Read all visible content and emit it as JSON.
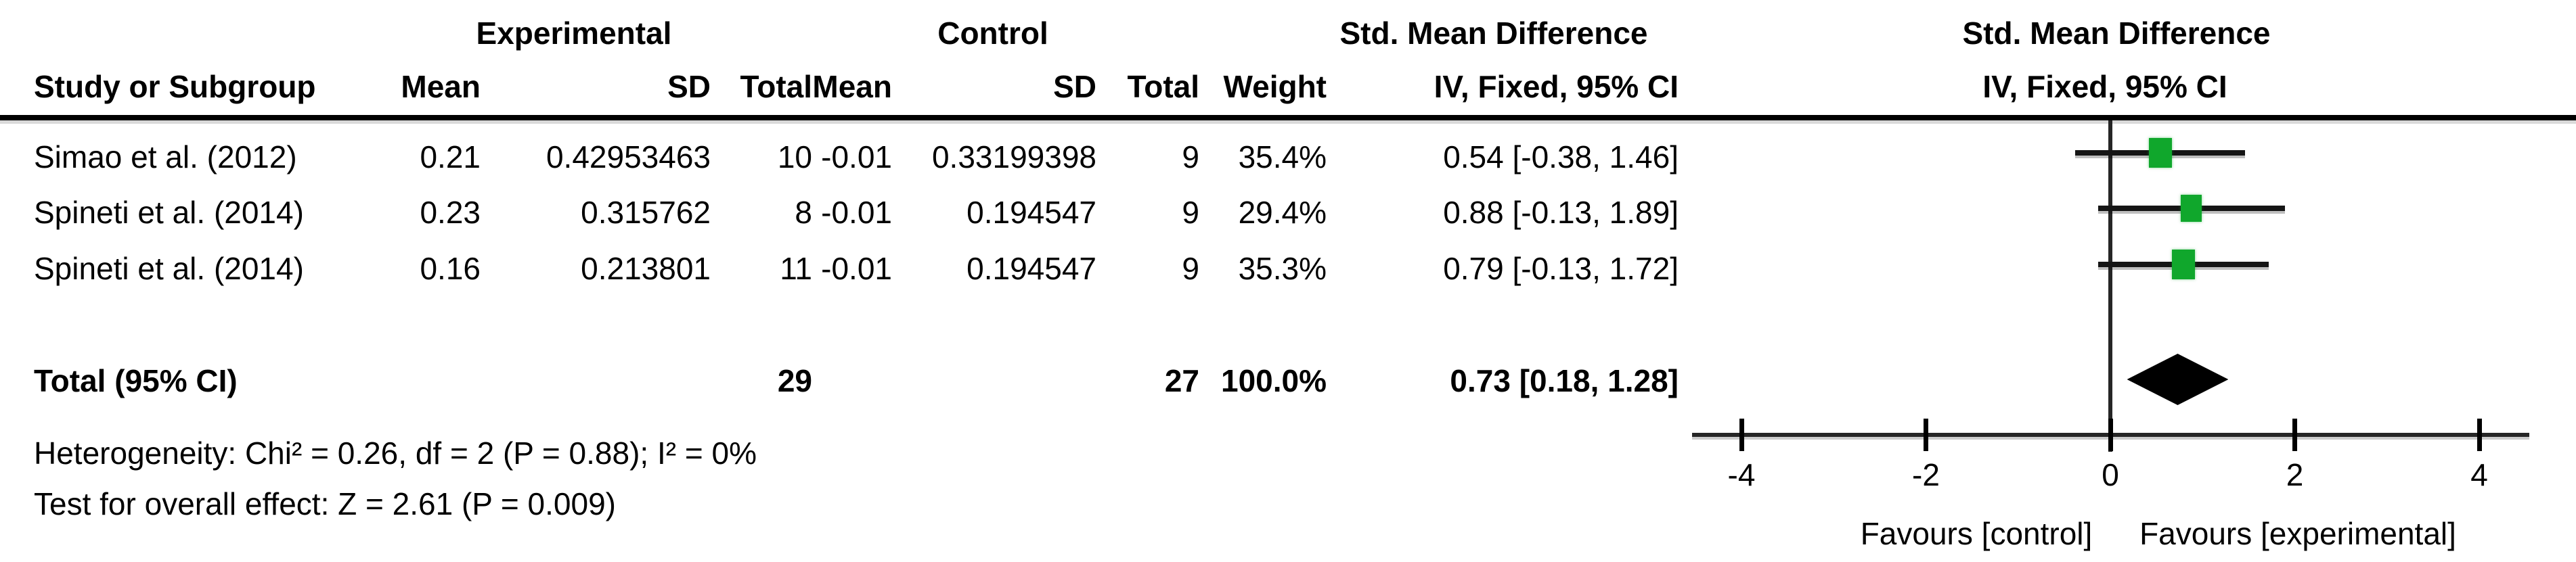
{
  "table": {
    "header": {
      "group_experimental": "Experimental",
      "group_control": "Control",
      "group_smd_text": "Std. Mean Difference",
      "group_smd_plot": "Std. Mean Difference",
      "col_study": "Study or Subgroup",
      "col_exp_mean": "Mean",
      "col_exp_sd": "SD",
      "col_exp_total": "Total",
      "col_ctrl_mean": "Mean",
      "col_ctrl_sd": "SD",
      "col_ctrl_total": "Total",
      "col_weight": "Weight",
      "col_ci": "IV, Fixed, 95% CI",
      "col_ci_plot": "IV, Fixed, 95% CI"
    },
    "rows": [
      {
        "study": "Simao et al. (2012)",
        "exp_mean": "0.21",
        "exp_sd": "0.42953463",
        "exp_total": "10",
        "ctrl_mean": "-0.01",
        "ctrl_sd": "0.33199398",
        "ctrl_total": "9",
        "weight": "35.4%",
        "smd": "0.54 [-0.38, 1.46]"
      },
      {
        "study": "Spineti et al. (2014)",
        "exp_mean": "0.23",
        "exp_sd": "0.315762",
        "exp_total": "8",
        "ctrl_mean": "-0.01",
        "ctrl_sd": "0.194547",
        "ctrl_total": "9",
        "weight": "29.4%",
        "smd": "0.88 [-0.13, 1.89]"
      },
      {
        "study": "Spineti et al. (2014)",
        "exp_mean": "0.16",
        "exp_sd": "0.213801",
        "exp_total": "11",
        "ctrl_mean": "-0.01",
        "ctrl_sd": "0.194547",
        "ctrl_total": "9",
        "weight": "35.3%",
        "smd": "0.79 [-0.13, 1.72]"
      }
    ],
    "total": {
      "label": "Total (95% CI)",
      "exp_total": "29",
      "ctrl_total": "27",
      "weight": "100.0%",
      "smd": "0.73 [0.18, 1.28]"
    },
    "footnotes": {
      "heterogeneity": "Heterogeneity: Chi² = 0.26, df = 2 (P = 0.88); I² = 0%",
      "overall_effect": "Test for overall effect: Z = 2.61 (P = 0.009)"
    }
  },
  "chart_data": {
    "type": "forest",
    "effect_measure": "Std. Mean Difference, IV, Fixed, 95% CI",
    "x_axis": {
      "ticks": [
        -4,
        -2,
        0,
        2,
        4
      ],
      "range": [
        -4.5,
        4.5
      ],
      "zero_line": 0,
      "label_left": "Favours [control]",
      "label_right": "Favours [experimental]"
    },
    "studies": [
      {
        "name": "Simao et al. (2012)",
        "estimate": 0.54,
        "ci_lower": -0.38,
        "ci_upper": 1.46,
        "weight_pct": 35.4,
        "marker": "green-square"
      },
      {
        "name": "Spineti et al. (2014)",
        "estimate": 0.88,
        "ci_lower": -0.13,
        "ci_upper": 1.89,
        "weight_pct": 29.4,
        "marker": "green-square"
      },
      {
        "name": "Spineti et al. (2014)",
        "estimate": 0.79,
        "ci_lower": -0.13,
        "ci_upper": 1.72,
        "weight_pct": 35.3,
        "marker": "green-square"
      }
    ],
    "total": {
      "name": "Total (95% CI)",
      "estimate": 0.73,
      "ci_lower": 0.18,
      "ci_upper": 1.28,
      "weight_pct": 100.0,
      "marker": "black-diamond"
    }
  },
  "colors": {
    "square_green": "#10a72c",
    "diamond_black": "#000000",
    "line_black": "#000000",
    "background": "#ffffff"
  }
}
